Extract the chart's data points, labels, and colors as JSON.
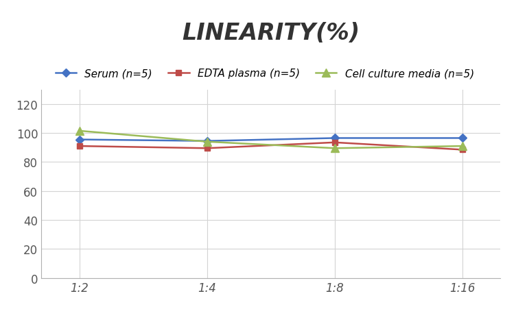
{
  "title": "LINEARITY(%)",
  "x_labels": [
    "1:2",
    "1:4",
    "1:8",
    "1:16"
  ],
  "x_positions": [
    0,
    1,
    2,
    3
  ],
  "series": [
    {
      "label": "Serum (n=5)",
      "values": [
        95.5,
        94.5,
        96.5,
        96.5
      ],
      "color": "#4472C4",
      "marker": "D",
      "marker_color": "#4472C4",
      "linewidth": 1.8,
      "markersize": 6
    },
    {
      "label": "EDTA plasma (n=5)",
      "values": [
        91.0,
        89.5,
        93.5,
        88.5
      ],
      "color": "#BE4B48",
      "marker": "s",
      "marker_color": "#BE4B48",
      "linewidth": 1.8,
      "markersize": 6
    },
    {
      "label": "Cell culture media (n=5)",
      "values": [
        101.5,
        94.0,
        89.5,
        91.0
      ],
      "color": "#9BBB59",
      "marker": "^",
      "marker_color": "#9BBB59",
      "linewidth": 1.8,
      "markersize": 8
    }
  ],
  "ylim": [
    0,
    130
  ],
  "yticks": [
    0,
    20,
    40,
    60,
    80,
    100,
    120
  ],
  "background_color": "#ffffff",
  "grid_color": "#d3d3d3",
  "title_fontsize": 24,
  "legend_fontsize": 11,
  "tick_fontsize": 12
}
